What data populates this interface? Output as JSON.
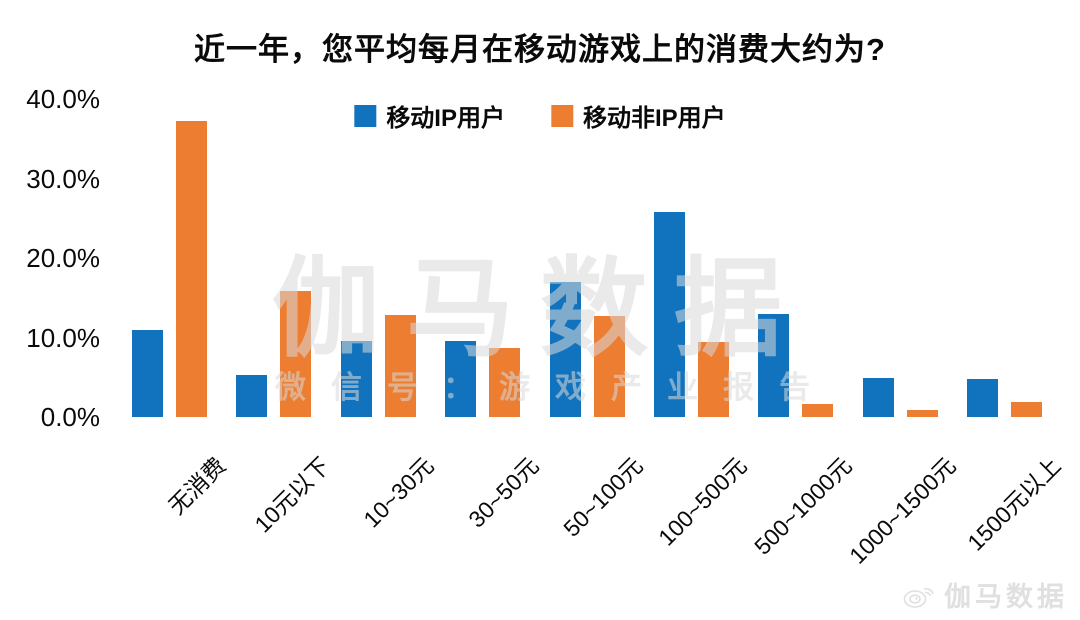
{
  "title": "近一年，您平均每月在移动游戏上的消费大约为?",
  "legend": {
    "items": [
      {
        "label": "移动IP用户",
        "color": "#1173BE"
      },
      {
        "label": "移动非IP用户",
        "color": "#EC7D31"
      }
    ]
  },
  "watermark": {
    "big": "伽马数据",
    "small": "微信号：游戏产业报告",
    "footer_brand": "伽马数据",
    "footer_icon": "weibo-icon"
  },
  "chart_data": {
    "type": "bar",
    "title": "近一年，您平均每月在移动游戏上的消费大约为?",
    "categories": [
      "无消费",
      "10元以下",
      "10~30元",
      "30~50元",
      "50~100元",
      "100~500元",
      "500~1000元",
      "1000~1500元",
      "1500元以上"
    ],
    "series": [
      {
        "name": "移动IP用户",
        "color": "#1173BE",
        "values": [
          10.9,
          5.3,
          9.5,
          9.5,
          17.0,
          25.8,
          13.0,
          4.9,
          4.8
        ]
      },
      {
        "name": "移动非IP用户",
        "color": "#EC7D31",
        "values": [
          37.2,
          15.8,
          12.8,
          8.7,
          12.7,
          9.4,
          1.6,
          0.9,
          1.9
        ]
      }
    ],
    "xlabel": "",
    "ylabel": "",
    "ylim": [
      0,
      40
    ],
    "yticks": [
      {
        "value": 40,
        "label": "40.0%"
      },
      {
        "value": 30,
        "label": "30.0%"
      },
      {
        "value": 20,
        "label": "20.0%"
      },
      {
        "value": 10,
        "label": "10.0%"
      },
      {
        "value": 0,
        "label": "0.0%"
      }
    ],
    "grid": false,
    "legend_position": "top-center"
  }
}
